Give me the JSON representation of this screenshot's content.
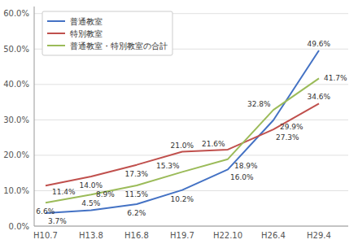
{
  "chart_data": {
    "type": "line",
    "categories": [
      "H10.7",
      "H13.8",
      "H16.8",
      "H19.7",
      "H22.10",
      "H26.4",
      "H29.4"
    ],
    "series": [
      {
        "name": "普通教室",
        "color": "#4472C4",
        "values": [
          3.7,
          4.5,
          6.2,
          10.2,
          16.0,
          29.9,
          49.6
        ],
        "value_labels": [
          "3.7%",
          "4.5%",
          "6.2%",
          "10.2%",
          "16.0%",
          "29.9%",
          "49.6%"
        ]
      },
      {
        "name": "特別教室",
        "color": "#C0504D",
        "values": [
          11.4,
          14.0,
          17.3,
          21.0,
          21.6,
          27.3,
          34.6
        ],
        "value_labels": [
          "11.4%",
          "14.0%",
          "17.3%",
          "21.0%",
          "21.6%",
          "27.3%",
          "34.6%"
        ]
      },
      {
        "name": "普通教室・特別教室の合計",
        "color": "#9BBB59",
        "values": [
          6.6,
          8.9,
          11.5,
          15.3,
          18.9,
          32.8,
          41.7
        ],
        "value_labels": [
          "6.6%",
          "8.9%",
          "11.5%",
          "15.3%",
          "18.9%",
          "32.8%",
          "41.7%"
        ]
      }
    ],
    "ylim": [
      0.0,
      62.0
    ],
    "yticks": [
      {
        "value": 0.0,
        "label": "0.0%"
      },
      {
        "value": 10.0,
        "label": "10.0%"
      },
      {
        "value": 20.0,
        "label": "20.0%"
      },
      {
        "value": 30.0,
        "label": "30.0%"
      },
      {
        "value": 40.0,
        "label": "40.0%"
      },
      {
        "value": 50.0,
        "label": "50.0%"
      },
      {
        "value": 60.0,
        "label": "60.0%"
      }
    ],
    "grid": true,
    "legend": "upper left",
    "data_labels": true
  }
}
